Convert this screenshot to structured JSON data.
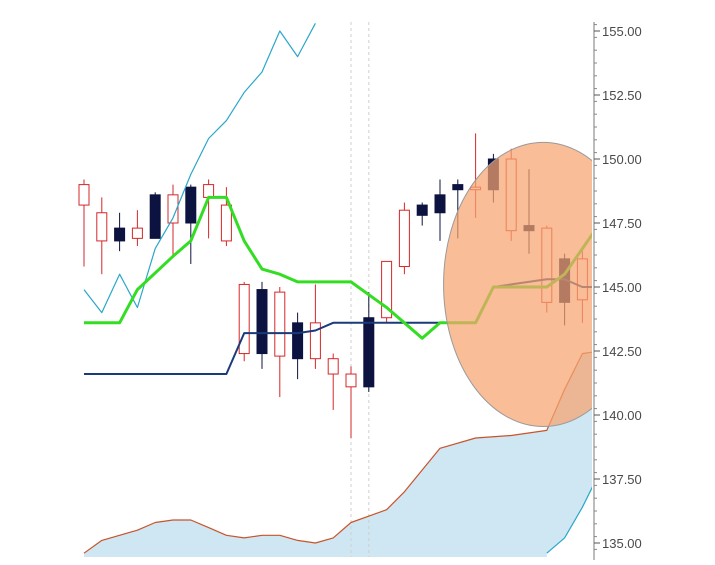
{
  "chart_data": {
    "type": "candlestick",
    "title": "",
    "xlabel": "",
    "ylabel": "",
    "ylim": [
      134.6,
      155.6
    ],
    "y_axis_position": "right",
    "y_ticks": [
      "155.00",
      "152.50",
      "150.00",
      "147.50",
      "145.00",
      "142.50",
      "140.00",
      "137.50",
      "135.00"
    ],
    "grid": false,
    "legend": "none",
    "colors": {
      "bull_candle": "#d62728",
      "bear_candle": "#0d1340",
      "tenkan": "#33dd22",
      "kijun": "#1a3a7a",
      "senkou_a": "#2aa7c9",
      "senkou_b": "#c8542a",
      "cloud_fill": "#cfe6f3",
      "highlight_circle": "#f7a36f"
    },
    "candles": [
      {
        "open": 148.2,
        "high": 149.2,
        "low": 145.8,
        "close": 149.0
      },
      {
        "open": 146.8,
        "high": 148.5,
        "low": 145.5,
        "close": 147.9
      },
      {
        "open": 147.3,
        "high": 147.9,
        "low": 146.4,
        "close": 146.8
      },
      {
        "open": 146.9,
        "high": 148.0,
        "low": 146.6,
        "close": 147.3
      },
      {
        "open": 148.6,
        "high": 148.7,
        "low": 146.9,
        "close": 146.9
      },
      {
        "open": 147.5,
        "high": 149.0,
        "low": 146.2,
        "close": 148.6
      },
      {
        "open": 148.9,
        "high": 149.0,
        "low": 145.9,
        "close": 147.5
      },
      {
        "open": 148.5,
        "high": 149.2,
        "low": 146.9,
        "close": 149.0
      },
      {
        "open": 146.8,
        "high": 148.9,
        "low": 146.6,
        "close": 148.2
      },
      {
        "open": 142.4,
        "high": 145.2,
        "low": 142.1,
        "close": 145.1
      },
      {
        "open": 144.9,
        "high": 145.2,
        "low": 141.8,
        "close": 142.4
      },
      {
        "open": 142.3,
        "high": 145.0,
        "low": 140.7,
        "close": 144.8
      },
      {
        "open": 143.6,
        "high": 144.0,
        "low": 141.4,
        "close": 142.2
      },
      {
        "open": 142.2,
        "high": 145.1,
        "low": 141.8,
        "close": 143.6
      },
      {
        "open": 141.6,
        "high": 142.4,
        "low": 140.2,
        "close": 142.2
      },
      {
        "open": 141.1,
        "high": 141.9,
        "low": 139.1,
        "close": 141.6
      },
      {
        "open": 143.8,
        "high": 144.8,
        "low": 140.9,
        "close": 141.1
      },
      {
        "open": 143.8,
        "high": 146.0,
        "low": 143.6,
        "close": 146.0
      },
      {
        "open": 145.8,
        "high": 148.3,
        "low": 145.5,
        "close": 148.0
      },
      {
        "open": 148.2,
        "high": 148.3,
        "low": 147.4,
        "close": 147.8
      },
      {
        "open": 148.6,
        "high": 149.2,
        "low": 146.8,
        "close": 147.9
      },
      {
        "open": 149.0,
        "high": 149.2,
        "low": 146.9,
        "close": 148.8
      },
      {
        "open": 148.8,
        "high": 151.0,
        "low": 147.7,
        "close": 148.9
      },
      {
        "open": 150.0,
        "high": 150.2,
        "low": 148.3,
        "close": 148.8
      },
      {
        "open": 147.2,
        "high": 150.4,
        "low": 146.8,
        "close": 150.0
      },
      {
        "open": 147.4,
        "high": 149.6,
        "low": 146.3,
        "close": 147.2
      },
      {
        "open": 144.4,
        "high": 147.4,
        "low": 144.0,
        "close": 147.3
      },
      {
        "open": 146.1,
        "high": 146.3,
        "low": 143.5,
        "close": 144.4
      },
      {
        "open": 144.5,
        "high": 146.4,
        "low": 143.6,
        "close": 146.1
      }
    ],
    "series": [
      {
        "role": "tenkan",
        "points": [
          [
            0,
            143.6
          ],
          [
            2,
            143.6
          ],
          [
            3,
            144.9
          ],
          [
            5,
            146.2
          ],
          [
            6,
            146.8
          ],
          [
            7,
            148.5
          ],
          [
            8,
            148.5
          ],
          [
            9,
            146.8
          ],
          [
            10,
            145.7
          ],
          [
            11,
            145.5
          ],
          [
            12,
            145.2
          ],
          [
            13,
            145.2
          ],
          [
            15,
            145.2
          ],
          [
            16,
            144.7
          ],
          [
            17,
            144.2
          ],
          [
            18,
            143.6
          ],
          [
            19,
            143.0
          ],
          [
            20,
            143.6
          ],
          [
            22,
            143.6
          ],
          [
            23,
            145.0
          ],
          [
            24,
            145.0
          ],
          [
            26,
            145.0
          ],
          [
            27,
            145.5
          ],
          [
            28,
            146.5
          ],
          [
            29,
            147.5
          ],
          [
            30,
            147.2
          ],
          [
            31,
            147.1
          ],
          [
            32,
            147.1
          ]
        ]
      },
      {
        "role": "kijun",
        "points": [
          [
            0,
            141.6
          ],
          [
            8,
            141.6
          ],
          [
            9,
            143.2
          ],
          [
            12,
            143.2
          ],
          [
            13,
            143.3
          ],
          [
            14,
            143.6
          ],
          [
            20,
            143.6
          ],
          [
            22,
            143.6
          ],
          [
            23,
            145.0
          ],
          [
            24,
            145.1
          ],
          [
            26,
            145.3
          ],
          [
            27,
            145.3
          ],
          [
            28,
            145.0
          ],
          [
            32,
            145.0
          ]
        ]
      },
      {
        "role": "senkou_a",
        "points": [
          [
            0,
            144.9
          ],
          [
            1,
            144.0
          ],
          [
            2,
            145.5
          ],
          [
            3,
            144.2
          ],
          [
            4,
            146.5
          ],
          [
            5,
            147.7
          ],
          [
            6,
            149.4
          ],
          [
            7,
            150.8
          ],
          [
            8,
            151.5
          ],
          [
            9,
            152.6
          ],
          [
            10,
            153.4
          ],
          [
            11,
            155.0
          ],
          [
            12,
            154.0
          ],
          [
            13,
            155.3
          ]
        ]
      },
      {
        "role": "senkou_a_lead",
        "points": [
          [
            26,
            134.6
          ],
          [
            27,
            135.2
          ],
          [
            28,
            136.4
          ],
          [
            29,
            137.8
          ],
          [
            30,
            138.2
          ],
          [
            31,
            138.4
          ],
          [
            32,
            138.4
          ]
        ]
      },
      {
        "role": "senkou_b",
        "points": [
          [
            0,
            134.6
          ],
          [
            1,
            135.1
          ],
          [
            3,
            135.5
          ],
          [
            4,
            135.8
          ],
          [
            5,
            135.9
          ],
          [
            6,
            135.9
          ],
          [
            7,
            135.6
          ],
          [
            8,
            135.3
          ],
          [
            9,
            135.2
          ],
          [
            10,
            135.3
          ],
          [
            11,
            135.3
          ],
          [
            12,
            135.1
          ],
          [
            13,
            135.0
          ],
          [
            14,
            135.2
          ],
          [
            15,
            135.8
          ],
          [
            17,
            136.3
          ],
          [
            18,
            137.0
          ],
          [
            20,
            138.7
          ],
          [
            22,
            139.1
          ],
          [
            24,
            139.2
          ],
          [
            26,
            139.4
          ],
          [
            27,
            141.0
          ],
          [
            28,
            142.4
          ],
          [
            29,
            142.5
          ],
          [
            30,
            142.5
          ],
          [
            31,
            142.6
          ],
          [
            32,
            143.0
          ]
        ]
      }
    ],
    "vertical_dotted_lines_at": [
      15,
      16
    ],
    "highlight_circle": {
      "center_x": 25.8,
      "center_y": 145.1,
      "radius_x": 5.6,
      "radius_y": 11.1
    }
  }
}
